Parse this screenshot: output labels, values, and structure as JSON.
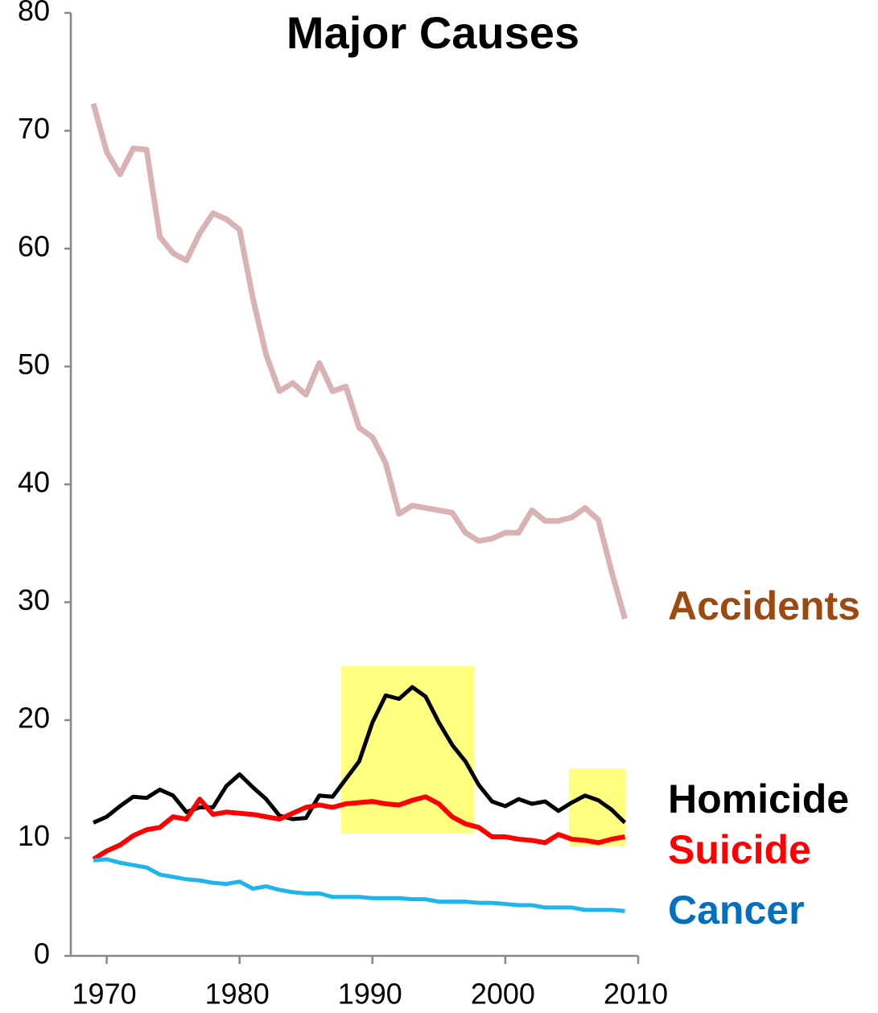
{
  "chart_data": {
    "type": "line",
    "title": "Major Causes",
    "x": [
      1969,
      1970,
      1971,
      1972,
      1973,
      1974,
      1975,
      1976,
      1977,
      1978,
      1979,
      1980,
      1981,
      1982,
      1983,
      1984,
      1985,
      1986,
      1987,
      1988,
      1989,
      1990,
      1991,
      1992,
      1993,
      1994,
      1995,
      1996,
      1997,
      1998,
      1999,
      2000,
      2001,
      2002,
      2003,
      2004,
      2005,
      2006,
      2007,
      2008,
      2009
    ],
    "series": [
      {
        "name": "Accidents",
        "color": "#d9b3b3",
        "label_color": "#9c4a0f",
        "values": [
          72.3,
          68.2,
          66.3,
          68.5,
          68.4,
          61.0,
          59.6,
          59.0,
          61.3,
          63.0,
          62.5,
          61.6,
          55.8,
          51.0,
          47.9,
          48.6,
          47.6,
          50.3,
          47.9,
          48.3,
          44.8,
          44.0,
          41.8,
          37.5,
          38.2,
          38.0,
          37.8,
          37.6,
          35.9,
          35.2,
          35.4,
          35.9,
          35.9,
          37.8,
          36.9,
          36.9,
          37.2,
          38.0,
          37.0,
          32.6,
          28.6
        ]
      },
      {
        "name": "Homicide",
        "color": "#000000",
        "label_color": "#000000",
        "values": [
          11.3,
          11.8,
          12.7,
          13.5,
          13.4,
          14.1,
          13.6,
          12.2,
          12.6,
          12.6,
          14.4,
          15.4,
          14.3,
          13.3,
          11.9,
          11.6,
          11.7,
          13.6,
          13.5,
          15.0,
          16.5,
          19.8,
          22.1,
          21.8,
          22.8,
          22.0,
          19.8,
          17.9,
          16.5,
          14.5,
          13.1,
          12.7,
          13.3,
          12.9,
          13.1,
          12.3,
          13.0,
          13.6,
          13.2,
          12.4,
          11.3
        ]
      },
      {
        "name": "Suicide",
        "color": "#ff0000",
        "label_color": "#ff0000",
        "values": [
          8.2,
          8.9,
          9.4,
          10.2,
          10.7,
          10.9,
          11.8,
          11.6,
          13.3,
          12.0,
          12.2,
          12.1,
          12.0,
          11.8,
          11.6,
          12.1,
          12.6,
          12.8,
          12.6,
          12.9,
          13.0,
          13.1,
          12.9,
          12.8,
          13.2,
          13.5,
          12.9,
          11.8,
          11.2,
          10.9,
          10.1,
          10.1,
          9.9,
          9.8,
          9.6,
          10.3,
          9.9,
          9.8,
          9.6,
          9.9,
          10.1
        ]
      },
      {
        "name": "Cancer",
        "color": "#1fb4ea",
        "label_color": "#0070c0",
        "values": [
          8.1,
          8.2,
          7.9,
          7.7,
          7.5,
          6.9,
          6.7,
          6.5,
          6.4,
          6.2,
          6.1,
          6.3,
          5.7,
          5.9,
          5.6,
          5.4,
          5.3,
          5.3,
          5.0,
          5.0,
          5.0,
          4.9,
          4.9,
          4.9,
          4.8,
          4.8,
          4.6,
          4.6,
          4.6,
          4.5,
          4.5,
          4.4,
          4.3,
          4.3,
          4.1,
          4.1,
          4.1,
          3.9,
          3.9,
          3.9,
          3.8
        ]
      }
    ],
    "xlim": [
      1967.3,
      2010
    ],
    "xticks": [
      1970,
      1980,
      1990,
      2000,
      2010
    ],
    "ylim": [
      0,
      80
    ],
    "yticks": [
      0,
      10,
      20,
      30,
      40,
      50,
      60,
      70,
      80
    ],
    "grid": false
  }
}
